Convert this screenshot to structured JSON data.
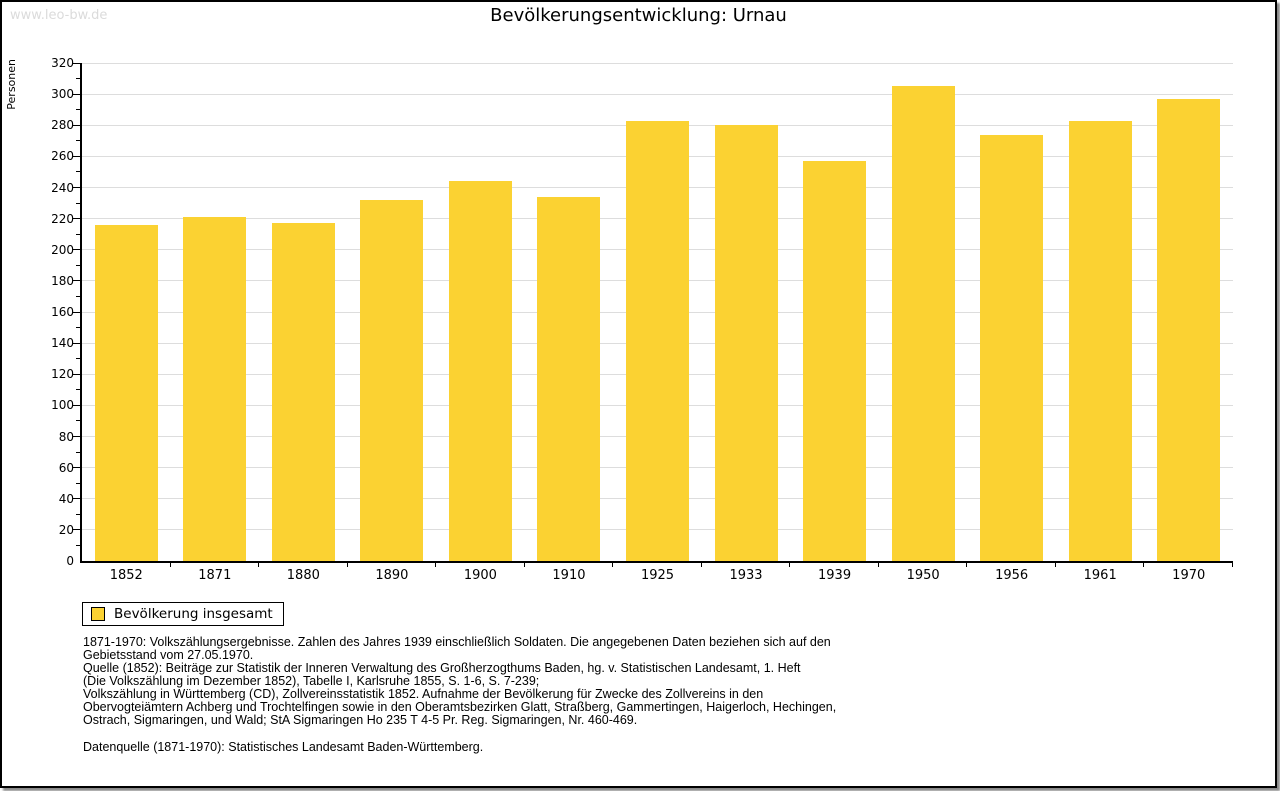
{
  "page": {
    "watermark": "www.leo-bw.de",
    "title": "Bevölkerungsentwicklung: Urnau"
  },
  "legend": {
    "label": "Bevölkerung insgesamt"
  },
  "colors": {
    "bar": "#FBD232",
    "grid": "#DDDDDD",
    "axis": "#000000",
    "watermark": "#DBDBDB"
  },
  "chart_data": {
    "type": "bar",
    "title": "Bevölkerungsentwicklung: Urnau",
    "categories": [
      "1852",
      "1871",
      "1880",
      "1890",
      "1900",
      "1910",
      "1925",
      "1933",
      "1939",
      "1950",
      "1956",
      "1961",
      "1970"
    ],
    "values": [
      216,
      221,
      217,
      232,
      244,
      234,
      283,
      280,
      257,
      305,
      274,
      283,
      297
    ],
    "series": [
      {
        "name": "Bevölkerung insgesamt",
        "values": [
          216,
          221,
          217,
          232,
          244,
          234,
          283,
          280,
          257,
          305,
          274,
          283,
          297
        ]
      }
    ],
    "xlabel": "",
    "ylabel": "Personen",
    "ylim": [
      0,
      320
    ],
    "y_major_step": 20,
    "y_minor_step": 10,
    "grid": true,
    "legend_position": "bottom-left",
    "bar_color": "#FBD232"
  },
  "footnotes": {
    "lines": [
      "1871-1970: Volkszählungsergebnisse. Zahlen des Jahres 1939 einschließlich Soldaten. Die angegebenen Daten beziehen sich auf den",
      "Gebietsstand vom 27.05.1970.",
      "Quelle (1852): Beiträge zur Statistik der Inneren Verwaltung des Großherzogthums Baden, hg. v. Statistischen Landesamt, 1. Heft",
      "(Die Volkszählung im Dezember 1852), Tabelle I, Karlsruhe 1855, S. 1-6, S. 7-239;",
      "Volkszählung in Württemberg (CD), Zollvereinsstatistik 1852. Aufnahme der Bevölkerung für Zwecke des Zollvereins in den",
      "Obervogteiämtern Achberg und Trochtelfingen sowie in den Oberamtsbezirken Glatt, Straßberg, Gammertingen, Haigerloch, Hechingen,",
      "Ostrach, Sigmaringen, und Wald; StA Sigmaringen Ho 235 T 4-5 Pr. Reg. Sigmaringen, Nr. 460-469."
    ],
    "datasource": "Datenquelle (1871-1970): Statistisches Landesamt Baden-Württemberg."
  }
}
